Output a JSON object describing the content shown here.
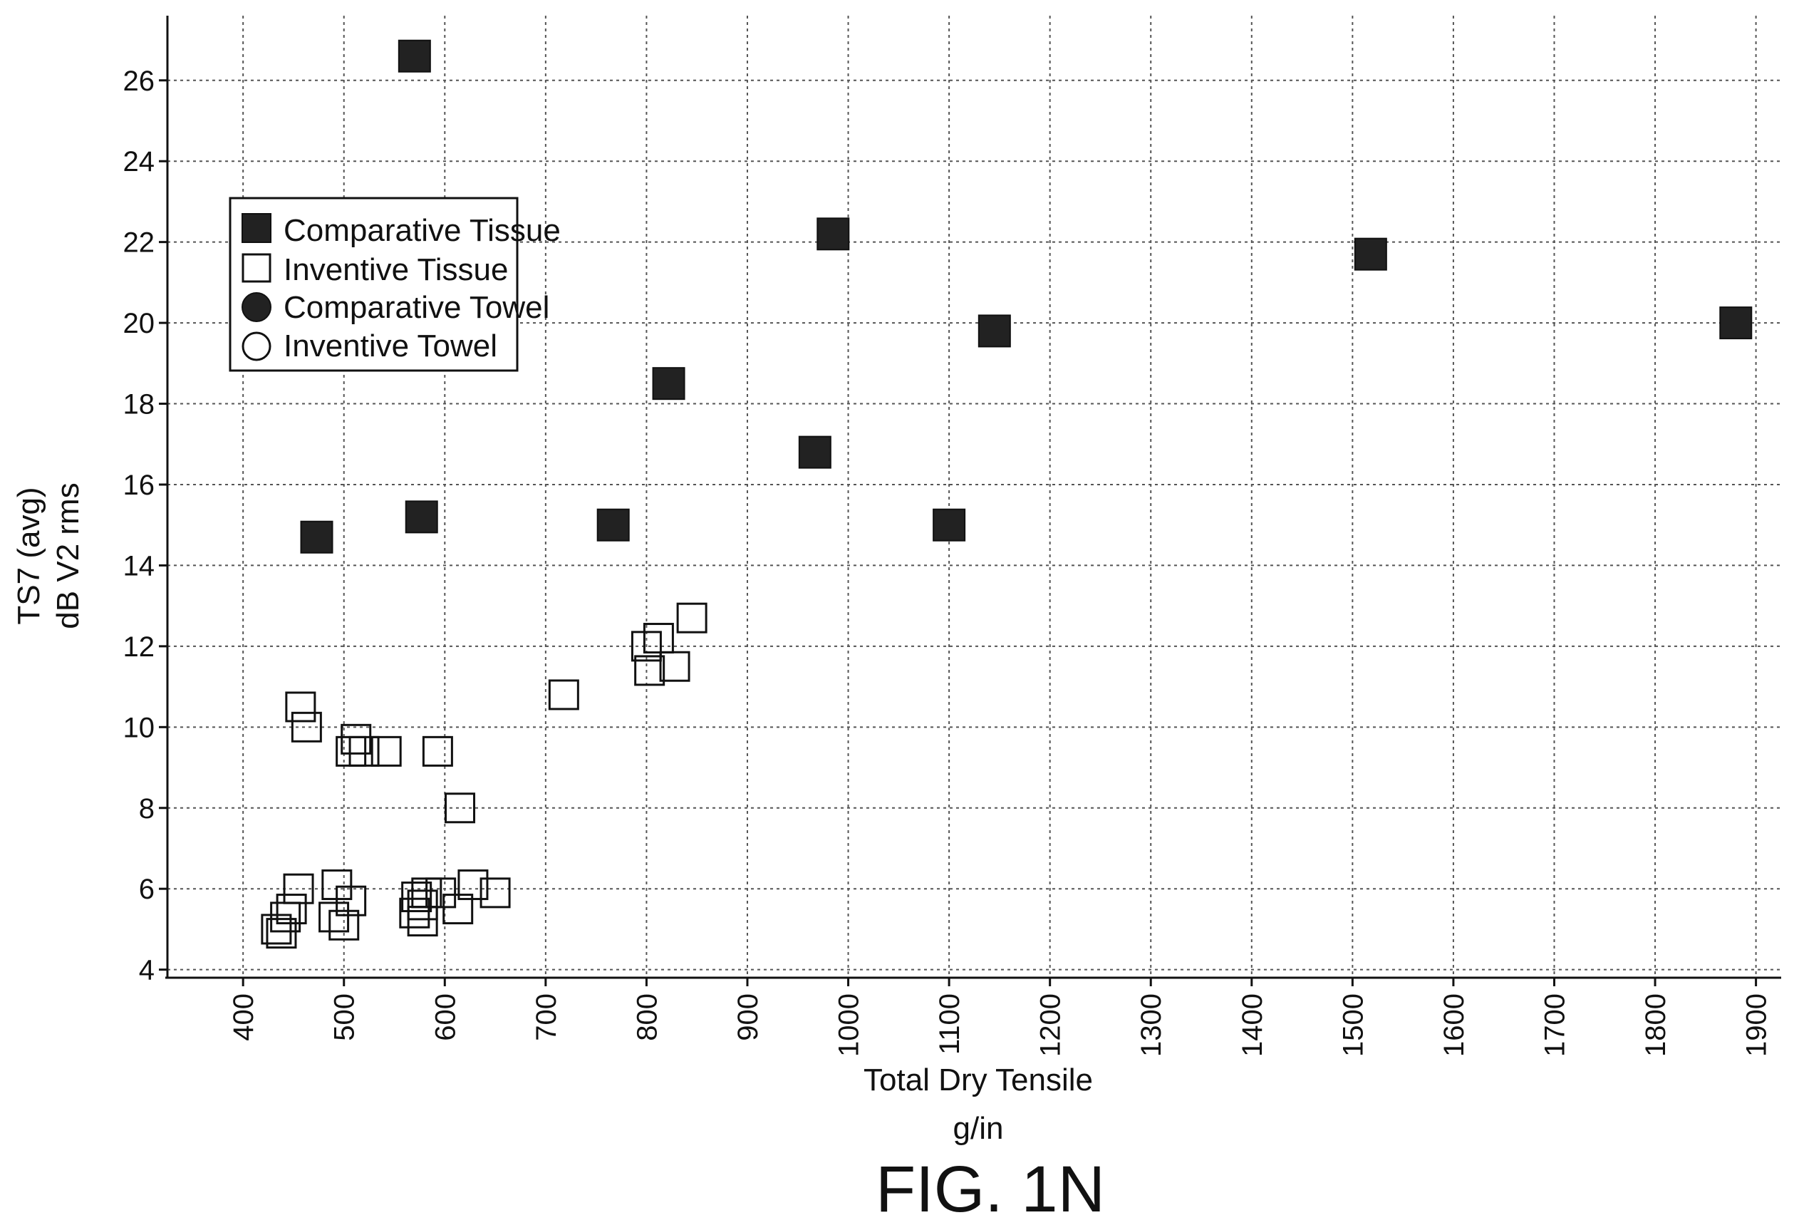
{
  "chart_data": {
    "type": "scatter",
    "title": "",
    "xlabel": "Total Dry Tensile",
    "xlabel_unit": "g/in",
    "ylabel": "TS7 (avg)",
    "ylabel_unit": "dB V2 rms",
    "xlim": [
      325,
      1925
    ],
    "ylim": [
      3.8,
      27.6
    ],
    "xticks": [
      400,
      500,
      600,
      700,
      800,
      900,
      1000,
      1100,
      1200,
      1300,
      1400,
      1500,
      1600,
      1700,
      1800,
      1900
    ],
    "yticks": [
      4,
      6,
      8,
      10,
      12,
      14,
      16,
      18,
      20,
      22,
      24,
      26
    ],
    "grid": true,
    "legend_position": "top-left",
    "series": [
      {
        "name": "Comparative Tissue",
        "marker": "filled-square",
        "points": [
          {
            "x": 570,
            "y": 26.6
          },
          {
            "x": 985,
            "y": 22.2
          },
          {
            "x": 1518,
            "y": 21.7
          },
          {
            "x": 1880,
            "y": 20.0
          },
          {
            "x": 1145,
            "y": 19.8
          },
          {
            "x": 822,
            "y": 18.5
          },
          {
            "x": 967,
            "y": 16.8
          },
          {
            "x": 577,
            "y": 15.2
          },
          {
            "x": 473,
            "y": 14.7
          },
          {
            "x": 767,
            "y": 15.0
          },
          {
            "x": 1100,
            "y": 15.0
          }
        ]
      },
      {
        "name": "Inventive Tissue",
        "marker": "open-square",
        "points": [
          {
            "x": 845,
            "y": 12.7
          },
          {
            "x": 812,
            "y": 12.2
          },
          {
            "x": 800,
            "y": 12.0
          },
          {
            "x": 828,
            "y": 11.5
          },
          {
            "x": 803,
            "y": 11.4
          },
          {
            "x": 718,
            "y": 10.8
          },
          {
            "x": 457,
            "y": 10.5
          },
          {
            "x": 463,
            "y": 10.0
          },
          {
            "x": 512,
            "y": 9.7
          },
          {
            "x": 507,
            "y": 9.4
          },
          {
            "x": 520,
            "y": 9.4
          },
          {
            "x": 542,
            "y": 9.4
          },
          {
            "x": 593,
            "y": 9.4
          },
          {
            "x": 615,
            "y": 8.0
          },
          {
            "x": 455,
            "y": 6.0
          },
          {
            "x": 493,
            "y": 6.1
          },
          {
            "x": 582,
            "y": 5.9
          },
          {
            "x": 596,
            "y": 5.9
          },
          {
            "x": 628,
            "y": 6.1
          },
          {
            "x": 650,
            "y": 5.9
          },
          {
            "x": 572,
            "y": 5.8
          },
          {
            "x": 507,
            "y": 5.7
          },
          {
            "x": 578,
            "y": 5.6
          },
          {
            "x": 613,
            "y": 5.5
          },
          {
            "x": 448,
            "y": 5.5
          },
          {
            "x": 442,
            "y": 5.3
          },
          {
            "x": 570,
            "y": 5.4
          },
          {
            "x": 490,
            "y": 5.3
          },
          {
            "x": 578,
            "y": 5.2
          },
          {
            "x": 500,
            "y": 5.1
          },
          {
            "x": 433,
            "y": 5.0
          },
          {
            "x": 438,
            "y": 4.9
          }
        ]
      },
      {
        "name": "Comparative Towel",
        "marker": "filled-circle",
        "points": []
      },
      {
        "name": "Inventive Towel",
        "marker": "open-circle",
        "points": []
      }
    ]
  },
  "caption": "FIG. 1N"
}
